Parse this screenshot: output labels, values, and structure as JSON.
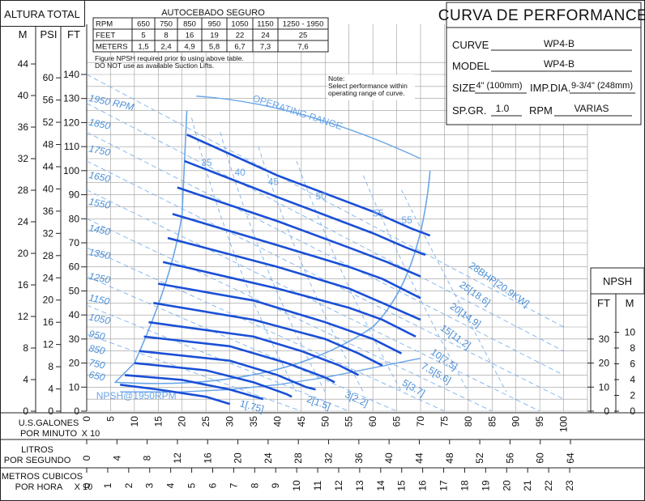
{
  "header": {
    "altura_total": "ALTURA TOTAL",
    "unit_m": "M",
    "unit_psi": "PSI",
    "unit_ft": "FT",
    "table_title": "AUTOCEBADO SEGURO",
    "table_rows": [
      [
        "RPM",
        "650",
        "750",
        "850",
        "950",
        "1050",
        "1150",
        "1250 - 1950"
      ],
      [
        "FEET",
        "5",
        "8",
        "16",
        "19",
        "22",
        "24",
        "25"
      ],
      [
        "METERS",
        "1,5",
        "2,4",
        "4,9",
        "5,8",
        "6,7",
        "7,3",
        "7,6"
      ]
    ],
    "table_note_1": "Figure NPSH required prior to using above table.",
    "table_note_2": "DO NOT use as available Suction Lifts.",
    "note_1": "Note:",
    "note_2": "Select performance within",
    "note_3": "operating range of curve."
  },
  "info_box": {
    "title": "CURVA DE PERFORMANCE",
    "curve_label": "CURVE",
    "curve_value": "WP4-B",
    "model_label": "MODEL",
    "model_value": "WP4-B",
    "size_label": "SIZE",
    "size_value": "4\" (100mm)",
    "imp_label": "IMP.DIA.",
    "imp_value": "9-3/4\" (248mm)",
    "spgr_label": "SP.GR.",
    "spgr_value": "1.0",
    "rpm_label": "RPM",
    "rpm_value": "VARIAS"
  },
  "npsh_box": {
    "title": "NPSH",
    "unit_ft": "FT",
    "unit_m": "M",
    "ft_ticks": [
      "0",
      "10",
      "20",
      "30"
    ],
    "m_ticks": [
      "0",
      "2",
      "4",
      "6",
      "8",
      "10"
    ]
  },
  "axes": {
    "ft_ticks": [
      "0",
      "10",
      "20",
      "30",
      "40",
      "50",
      "60",
      "70",
      "80",
      "90",
      "100",
      "110",
      "120",
      "130",
      "140"
    ],
    "psi_ticks": [
      "0",
      "4",
      "8",
      "12",
      "16",
      "20",
      "24",
      "28",
      "32",
      "36",
      "40",
      "44",
      "48",
      "52",
      "56",
      "60"
    ],
    "m_ticks": [
      "0",
      "4",
      "8",
      "12",
      "16",
      "20",
      "24",
      "28",
      "32",
      "36",
      "40",
      "44"
    ],
    "gpm_ticks": [
      "0",
      "5",
      "10",
      "15",
      "20",
      "25",
      "30",
      "35",
      "40",
      "45",
      "50",
      "55",
      "60",
      "65",
      "70",
      "75",
      "80",
      "85",
      "90",
      "95",
      "100"
    ],
    "lps_ticks": [
      "0",
      "4",
      "8",
      "12",
      "16",
      "20",
      "24",
      "28",
      "32",
      "36",
      "40",
      "44",
      "48",
      "52",
      "56",
      "60",
      "64"
    ],
    "m3h_ticks": [
      "0",
      "1",
      "2",
      "3",
      "4",
      "5",
      "6",
      "7",
      "8",
      "9",
      "10",
      "11",
      "12",
      "13",
      "14",
      "15",
      "16",
      "17",
      "18",
      "19",
      "20",
      "21",
      "22",
      "23"
    ],
    "gpm_label_1": "U.S.GALONES",
    "gpm_label_2": "POR MINUTO",
    "gpm_mult": "X 10",
    "lps_label_1": "LITROS",
    "lps_label_2": "POR SEGUNDO",
    "m3h_label_1": "METROS CUBICOS",
    "m3h_label_2": "POR HORA",
    "m3h_mult": "X 10"
  },
  "chart_data": {
    "type": "line",
    "x_unit": "U.S. gallons per minute x10",
    "y_unit": "ft",
    "xlim": [
      0,
      105
    ],
    "ylim": [
      0,
      140
    ],
    "grid": true,
    "operating_range_label": "OPERATING RANGE",
    "npsh_label": "NPSH@1950RPM",
    "series": [
      {
        "name": "1950 RPM",
        "points": [
          [
            21,
            115
          ],
          [
            40,
            98
          ],
          [
            60,
            83
          ],
          [
            68,
            76
          ],
          [
            72,
            73
          ]
        ]
      },
      {
        "name": "1850",
        "points": [
          [
            20.5,
            104
          ],
          [
            40,
            89
          ],
          [
            60,
            74
          ],
          [
            67,
            68
          ],
          [
            71,
            65
          ]
        ]
      },
      {
        "name": "1750",
        "points": [
          [
            19,
            93
          ],
          [
            40,
            79
          ],
          [
            55,
            68
          ],
          [
            63,
            62
          ],
          [
            70,
            56
          ]
        ]
      },
      {
        "name": "1650",
        "points": [
          [
            18,
            82
          ],
          [
            40,
            69
          ],
          [
            55,
            60
          ],
          [
            62,
            55
          ],
          [
            70,
            47
          ]
        ]
      },
      {
        "name": "1550",
        "points": [
          [
            17,
            72
          ],
          [
            40,
            60
          ],
          [
            55,
            51
          ],
          [
            62,
            45
          ],
          [
            70,
            38
          ]
        ]
      },
      {
        "name": "1450",
        "points": [
          [
            16,
            62
          ],
          [
            40,
            51
          ],
          [
            55,
            43
          ],
          [
            62,
            38
          ],
          [
            69,
            31
          ]
        ]
      },
      {
        "name": "1350",
        "points": [
          [
            15,
            53
          ],
          [
            35,
            46
          ],
          [
            50,
            37
          ],
          [
            60,
            30
          ],
          [
            66,
            24
          ]
        ]
      },
      {
        "name": "1250",
        "points": [
          [
            14,
            45
          ],
          [
            35,
            38
          ],
          [
            50,
            30
          ],
          [
            57,
            24
          ],
          [
            62,
            19
          ]
        ]
      },
      {
        "name": "1150",
        "points": [
          [
            13,
            37
          ],
          [
            35,
            31
          ],
          [
            45,
            25
          ],
          [
            53,
            19
          ],
          [
            57,
            15
          ]
        ]
      },
      {
        "name": "1050",
        "points": [
          [
            12,
            31
          ],
          [
            30,
            27
          ],
          [
            42,
            20
          ],
          [
            50,
            14
          ],
          [
            52,
            12
          ]
        ]
      },
      {
        "name": "950",
        "points": [
          [
            11,
            25
          ],
          [
            30,
            21
          ],
          [
            40,
            15
          ],
          [
            46,
            10
          ],
          [
            48,
            9
          ]
        ]
      },
      {
        "name": "850",
        "points": [
          [
            10,
            20
          ],
          [
            25,
            17
          ],
          [
            35,
            12
          ],
          [
            42,
            7
          ],
          [
            43,
            6
          ]
        ]
      },
      {
        "name": "750",
        "points": [
          [
            8,
            15
          ],
          [
            20,
            13
          ],
          [
            30,
            9
          ],
          [
            37,
            5
          ]
        ]
      },
      {
        "name": "650",
        "points": [
          [
            7,
            11
          ],
          [
            15,
            9
          ],
          [
            25,
            6
          ],
          [
            30,
            3
          ]
        ]
      }
    ],
    "efficiency_labels": [
      "35",
      "40",
      "45",
      "50",
      "55",
      "55"
    ],
    "bhp_labels": [
      "28BHP[20.9KW]",
      "25[18.6]",
      "20[14.9]",
      "15[11.2]",
      "10[7.5]",
      "7.5[5.6]",
      "5[3.7]",
      "3[2.2]",
      "2[1.5]",
      "1[.75]"
    ],
    "npsh_curve": [
      [
        7,
        8
      ],
      [
        20,
        8
      ],
      [
        30,
        9
      ],
      [
        40,
        11
      ],
      [
        50,
        14
      ],
      [
        60,
        18
      ],
      [
        70,
        22
      ]
    ]
  }
}
